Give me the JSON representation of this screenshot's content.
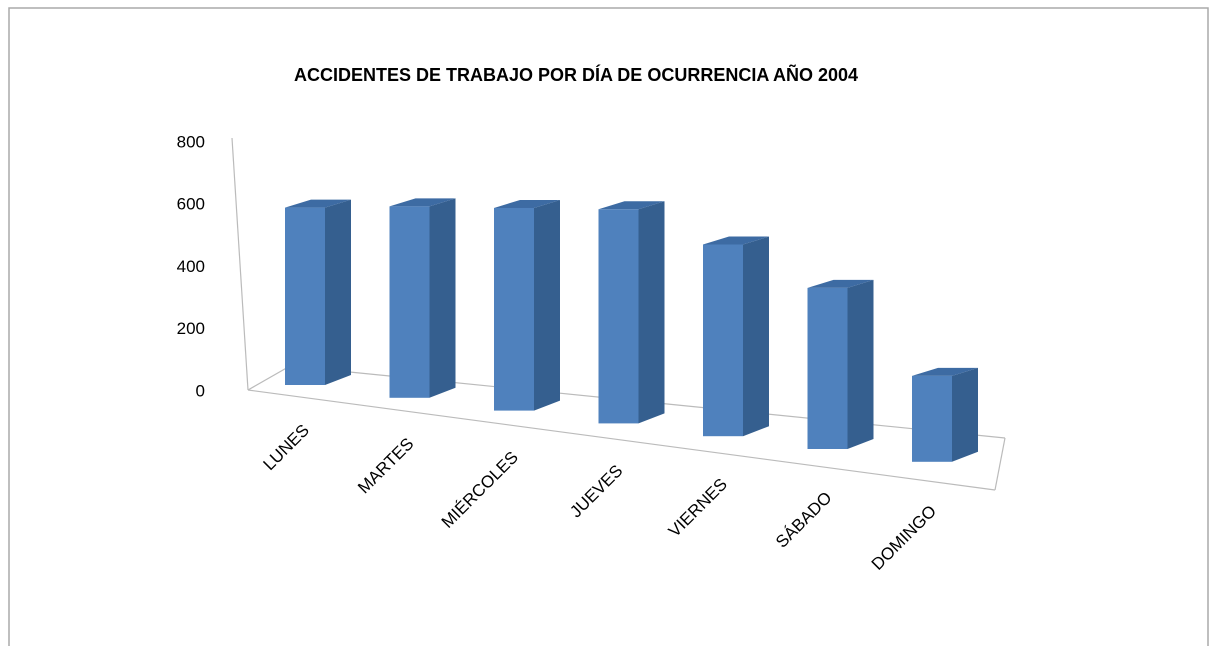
{
  "chart_data": {
    "type": "bar3d",
    "title": "ACCIDENTES DE TRABAJO POR DÍA DE OCURRENCIA AÑO 2004",
    "categories": [
      "LUNES",
      "MARTES",
      "MIÉRCOLES",
      "JUEVES",
      "VIERNES",
      "SÁBADO",
      "DOMINGO"
    ],
    "values": [
      570,
      600,
      620,
      640,
      560,
      460,
      240
    ],
    "color": "#4f81bd",
    "ylim": [
      0,
      800
    ],
    "yticks": [
      0,
      200,
      400,
      600,
      800
    ],
    "grid": false
  }
}
